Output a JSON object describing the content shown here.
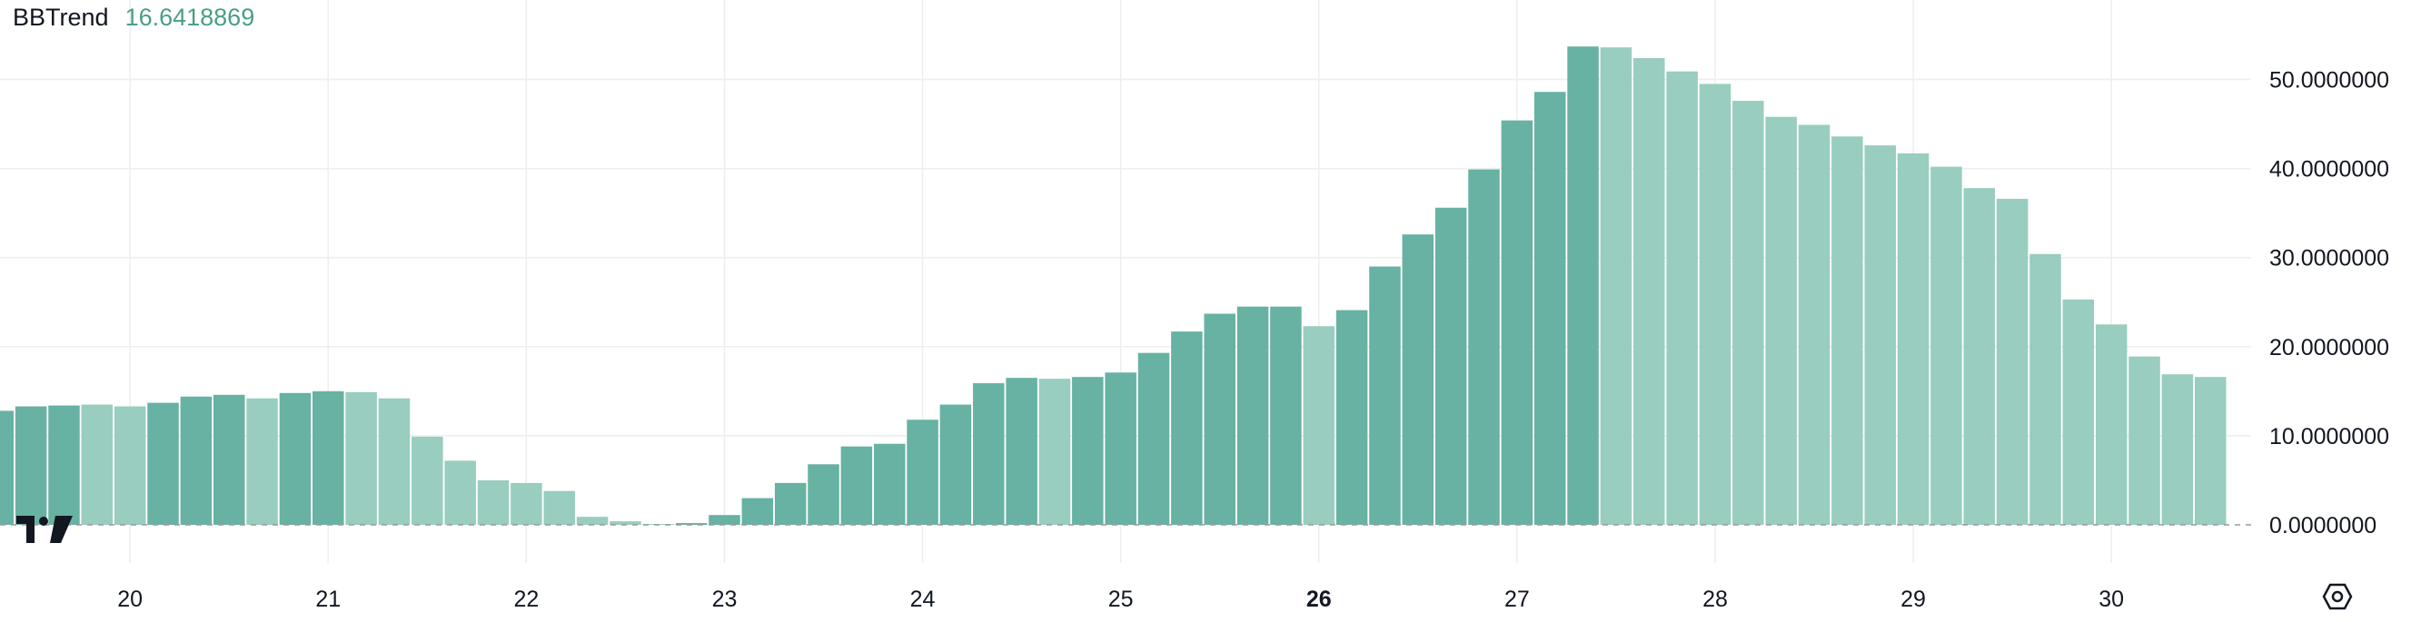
{
  "indicator": {
    "name": "BBTrend",
    "current_value": "16.6418869",
    "value_color": "#4a9e88"
  },
  "colors": {
    "bar_dark": "#67b2a2",
    "bar_light": "#98cdbf",
    "grid": "#eeeeee",
    "zero_line": "#9a9a9a",
    "text": "#131722"
  },
  "icons": {
    "logo": "tradingview-logo-icon",
    "settings": "settings-gear-icon"
  },
  "chart_data": {
    "type": "bar",
    "title": "",
    "xlabel": "",
    "ylabel": "",
    "ylim": [
      -1.5,
      57
    ],
    "grid": true,
    "y_ticks": [
      "0.0000000",
      "10.0000000",
      "20.0000000",
      "30.0000000",
      "40.0000000",
      "50.0000000"
    ],
    "y_tick_values": [
      0,
      10,
      20,
      30,
      40,
      50
    ],
    "x_ticks": [
      {
        "label": "20",
        "value": 4,
        "bold": false
      },
      {
        "label": "21",
        "value": 10,
        "bold": false
      },
      {
        "label": "22",
        "value": 16,
        "bold": false
      },
      {
        "label": "23",
        "value": 22,
        "bold": false
      },
      {
        "label": "24",
        "value": 28,
        "bold": false
      },
      {
        "label": "25",
        "value": 34,
        "bold": false
      },
      {
        "label": "26",
        "value": 40,
        "bold": true
      },
      {
        "label": "27",
        "value": 46,
        "bold": false
      },
      {
        "label": "28",
        "value": 52,
        "bold": false
      },
      {
        "label": "29",
        "value": 58,
        "bold": false
      },
      {
        "label": "30",
        "value": 64,
        "bold": false
      }
    ],
    "values": [
      12.8,
      13.3,
      13.4,
      13.5,
      13.3,
      13.7,
      14.4,
      14.6,
      14.2,
      14.8,
      15.0,
      14.9,
      14.2,
      9.9,
      7.2,
      5.0,
      4.7,
      3.8,
      0.9,
      0.4,
      0.1,
      0.2,
      1.1,
      3.0,
      4.7,
      6.8,
      8.8,
      9.1,
      11.8,
      13.5,
      15.9,
      16.5,
      16.4,
      16.6,
      17.1,
      19.3,
      21.7,
      23.7,
      24.5,
      24.5,
      22.3,
      24.1,
      29.0,
      32.6,
      35.6,
      39.9,
      45.4,
      48.6,
      53.7,
      53.6,
      52.4,
      50.9,
      49.5,
      47.6,
      45.8,
      44.9,
      43.6,
      42.6,
      41.7,
      40.2,
      37.8,
      36.6,
      30.4,
      25.3,
      22.5,
      18.9,
      16.9,
      16.6
    ],
    "rising": [
      true,
      true,
      true,
      false,
      false,
      true,
      true,
      true,
      false,
      true,
      true,
      false,
      false,
      false,
      false,
      false,
      false,
      false,
      false,
      false,
      false,
      true,
      true,
      true,
      true,
      true,
      true,
      true,
      true,
      true,
      true,
      true,
      false,
      true,
      true,
      true,
      true,
      true,
      true,
      true,
      false,
      true,
      true,
      true,
      true,
      true,
      true,
      true,
      true,
      false,
      false,
      false,
      false,
      false,
      false,
      false,
      false,
      false,
      false,
      false,
      false,
      false,
      false,
      false,
      false,
      false,
      false,
      false
    ]
  }
}
